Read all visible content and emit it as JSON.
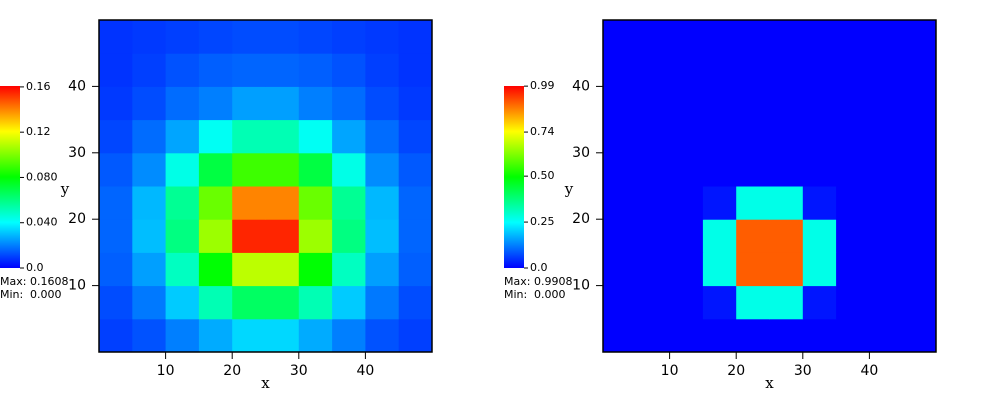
{
  "chart_data": [
    {
      "type": "heatmap",
      "xlabel": "x",
      "ylabel": "y",
      "xlim": [
        0,
        50
      ],
      "ylim": [
        0,
        50
      ],
      "xticks": [
        10,
        20,
        30,
        40
      ],
      "yticks": [
        10,
        20,
        30,
        40
      ],
      "xbins": [
        0,
        5,
        10,
        15,
        20,
        25,
        30,
        35,
        40,
        45,
        50
      ],
      "ybins": [
        0,
        5,
        10,
        15,
        20,
        25,
        30,
        35,
        40,
        45,
        50
      ],
      "colormap": [
        "#0000ff",
        "#00ffff",
        "#00ff00",
        "#ffff00",
        "#ff0000"
      ],
      "z": [
        [
          0.01,
          0.013,
          0.02,
          0.027,
          0.034,
          0.034,
          0.027,
          0.02,
          0.013,
          0.01
        ],
        [
          0.012,
          0.019,
          0.032,
          0.052,
          0.065,
          0.065,
          0.052,
          0.032,
          0.019,
          0.012
        ],
        [
          0.015,
          0.025,
          0.05,
          0.08,
          0.11,
          0.11,
          0.08,
          0.05,
          0.025,
          0.015
        ],
        [
          0.016,
          0.03,
          0.06,
          0.105,
          0.155,
          0.155,
          0.105,
          0.06,
          0.03,
          0.016
        ],
        [
          0.016,
          0.029,
          0.057,
          0.097,
          0.14,
          0.14,
          0.097,
          0.057,
          0.029,
          0.016
        ],
        [
          0.014,
          0.022,
          0.044,
          0.07,
          0.09,
          0.09,
          0.07,
          0.044,
          0.022,
          0.014
        ],
        [
          0.011,
          0.017,
          0.026,
          0.042,
          0.052,
          0.052,
          0.042,
          0.026,
          0.017,
          0.011
        ],
        [
          0.009,
          0.012,
          0.017,
          0.02,
          0.025,
          0.025,
          0.02,
          0.017,
          0.012,
          0.009
        ],
        [
          0.008,
          0.01,
          0.013,
          0.015,
          0.016,
          0.016,
          0.015,
          0.013,
          0.01,
          0.008
        ],
        [
          0.008,
          0.009,
          0.01,
          0.011,
          0.012,
          0.012,
          0.011,
          0.01,
          0.009,
          0.008
        ]
      ],
      "colorbar": {
        "ticks": [
          0.16,
          0.12,
          {
            "value": 0.08,
            "label": "0.080"
          },
          {
            "value": 0.04,
            "label": "0.040"
          },
          {
            "value": 0,
            "label": "0.0"
          }
        ],
        "max_label": "Max:",
        "max": 0.1608,
        "min_label": "Min:",
        "min": {
          "value": 0,
          "label": "0.000"
        }
      }
    },
    {
      "type": "heatmap",
      "xlabel": "x",
      "ylabel": "y",
      "xlim": [
        0,
        50
      ],
      "ylim": [
        0,
        50
      ],
      "xticks": [
        10,
        20,
        30,
        40
      ],
      "yticks": [
        10,
        20,
        30,
        40
      ],
      "xbins": [
        0,
        5,
        10,
        15,
        20,
        25,
        30,
        35,
        40,
        45,
        50
      ],
      "ybins": [
        0,
        5,
        10,
        15,
        20,
        25,
        30,
        35,
        40,
        45,
        50
      ],
      "colormap": [
        "#0000ff",
        "#00ffff",
        "#00ff00",
        "#ffff00",
        "#ff0000"
      ],
      "z": [
        [
          0,
          0,
          0,
          0,
          0,
          0,
          0,
          0,
          0,
          0
        ],
        [
          0,
          0,
          0,
          0.02,
          0.27,
          0.27,
          0.02,
          0,
          0,
          0
        ],
        [
          0,
          0,
          0,
          0.27,
          0.9,
          0.9,
          0.27,
          0,
          0,
          0
        ],
        [
          0,
          0,
          0,
          0.27,
          0.9,
          0.9,
          0.27,
          0,
          0,
          0
        ],
        [
          0,
          0,
          0,
          0.02,
          0.27,
          0.27,
          0.02,
          0,
          0,
          0
        ],
        [
          0,
          0,
          0,
          0,
          0,
          0,
          0,
          0,
          0,
          0
        ],
        [
          0,
          0,
          0,
          0,
          0,
          0,
          0,
          0,
          0,
          0
        ],
        [
          0,
          0,
          0,
          0,
          0,
          0,
          0,
          0,
          0,
          0
        ],
        [
          0,
          0,
          0,
          0,
          0,
          0,
          0,
          0,
          0,
          0
        ],
        [
          0,
          0,
          0,
          0,
          0,
          0,
          0,
          0,
          0,
          0
        ]
      ],
      "colorbar": {
        "ticks": [
          0.99,
          0.74,
          {
            "value": 0.5,
            "label": "0.50"
          },
          0.25,
          {
            "value": 0,
            "label": "0.0"
          }
        ],
        "max_label": "Max:",
        "max": 0.9908,
        "min_label": "Min:",
        "min": {
          "value": 0,
          "label": "0.000"
        }
      }
    }
  ]
}
